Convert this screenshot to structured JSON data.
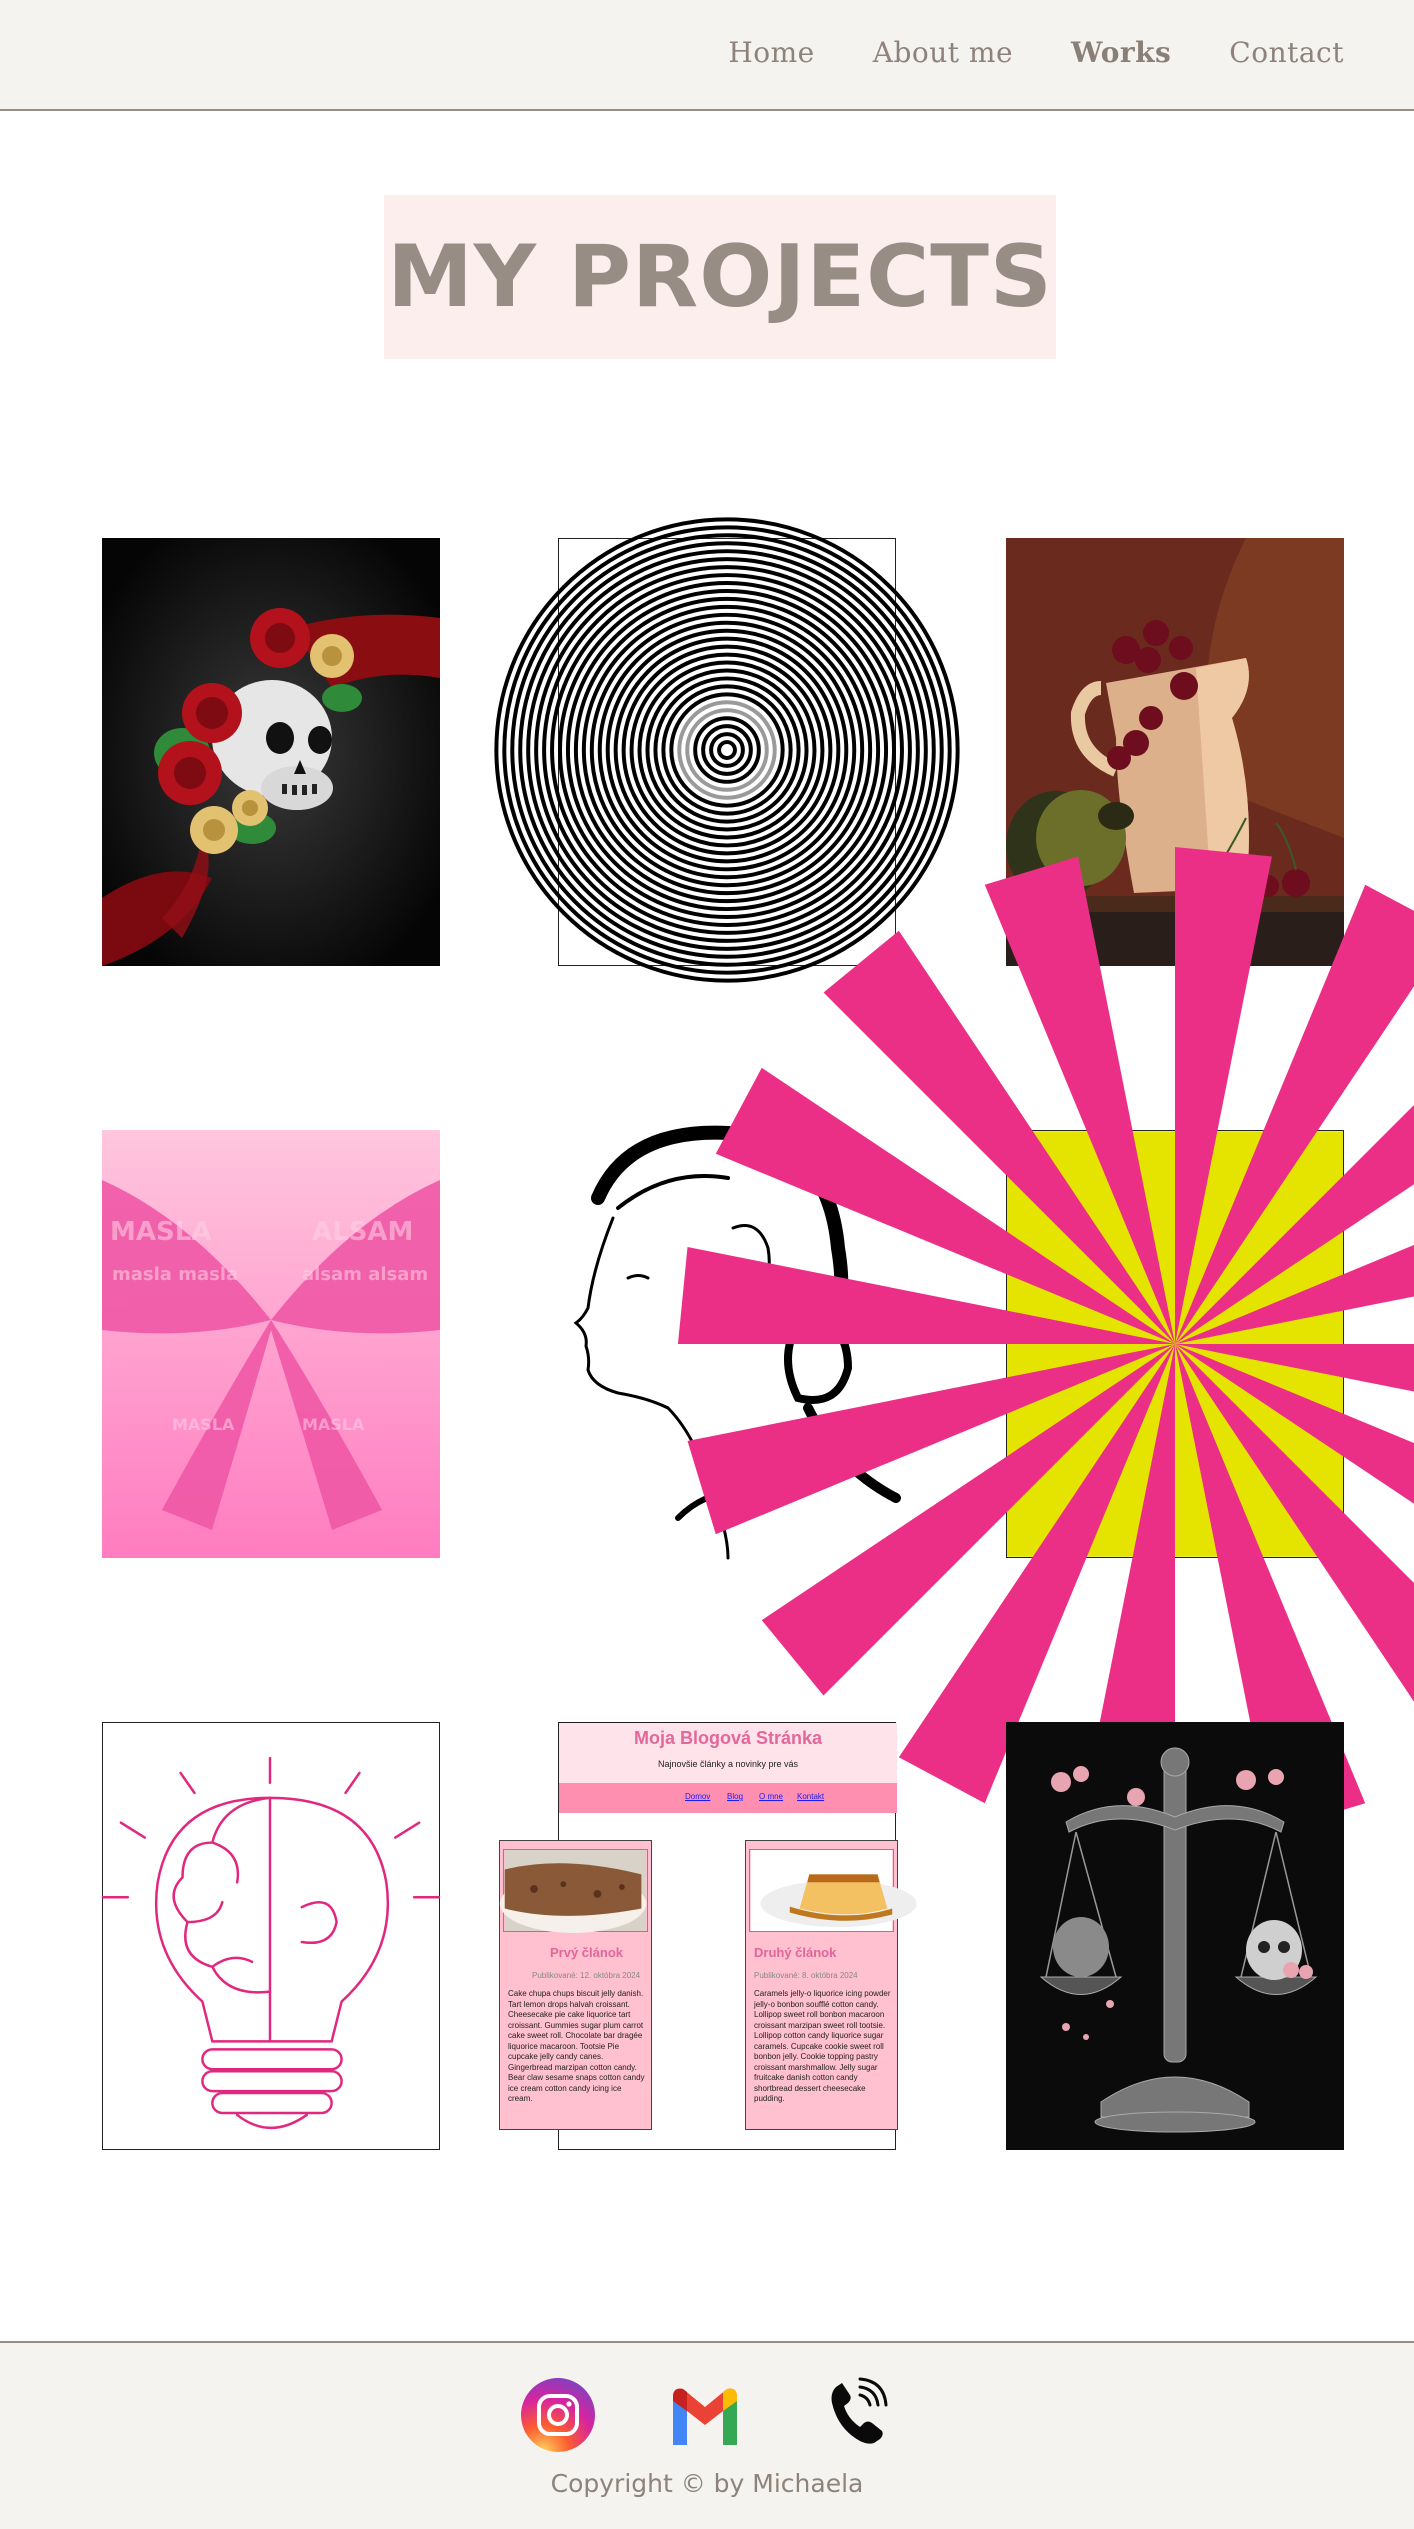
{
  "nav": {
    "items": [
      "Home",
      "About me",
      "Works",
      "Contact"
    ],
    "active": "Works"
  },
  "page": {
    "title": "MY PROJECTS"
  },
  "colors": {
    "accent_pink": "#fdeeee",
    "text_taupe": "#978d85",
    "bar_bg": "#f5f3f0"
  },
  "gallery": {
    "items": [
      {
        "name": "skull-roses-artwork"
      },
      {
        "name": "concentric-circles-artwork"
      },
      {
        "name": "still-life-cherries-artwork"
      },
      {
        "name": "masla-typography-bow-artwork"
      },
      {
        "name": "woman-profile-line-art"
      },
      {
        "name": "sunburst-rays-artwork"
      },
      {
        "name": "lightbulb-brain-line-art"
      },
      {
        "name": "blog-page-screenshot"
      },
      {
        "name": "skull-scales-artwork"
      }
    ]
  },
  "blog_mock": {
    "title": "Moja Blogová Stránka",
    "subtitle": "Najnovšie články a novinky pre vás",
    "nav": [
      "Domov",
      "Blog",
      "O mne",
      "Kontakt"
    ],
    "cards": [
      {
        "title": "Prvý článok",
        "date": "Publikované: 12. októbra 2024",
        "body": "Cake chupa chups biscuit jelly danish. Tart lemon drops halvah croissant. Cheesecake pie cake liquorice tart croissant. Gummies sugar plum carrot cake sweet roll. Chocolate bar dragée liquorice macaroon. Tootsie Pie cupcake jelly candy canes. Gingerbread marzipan cotton candy. Bear claw sesame snaps cotton candy ice cream cotton candy icing ice cream."
      },
      {
        "title": "Druhý článok",
        "date": "Publikované: 8. októbra 2024",
        "body": "Caramels jelly-o liquorice icing powder jelly-o bonbon soufflé cotton candy. Lollipop sweet roll bonbon macaroon croissant marzipan sweet roll tootsie. Lollipop cotton candy liquorice sugar caramels. Cupcake cookie sweet roll bonbon jelly. Cookie topping pastry croissant marshmallow. Jelly sugar fruitcake danish cotton candy shortbread dessert cheesecake pudding."
      }
    ]
  },
  "footer": {
    "socials": [
      {
        "icon": "instagram-icon"
      },
      {
        "icon": "gmail-icon"
      },
      {
        "icon": "phone-icon"
      }
    ],
    "copyright": "Copyright © by Michaela"
  }
}
